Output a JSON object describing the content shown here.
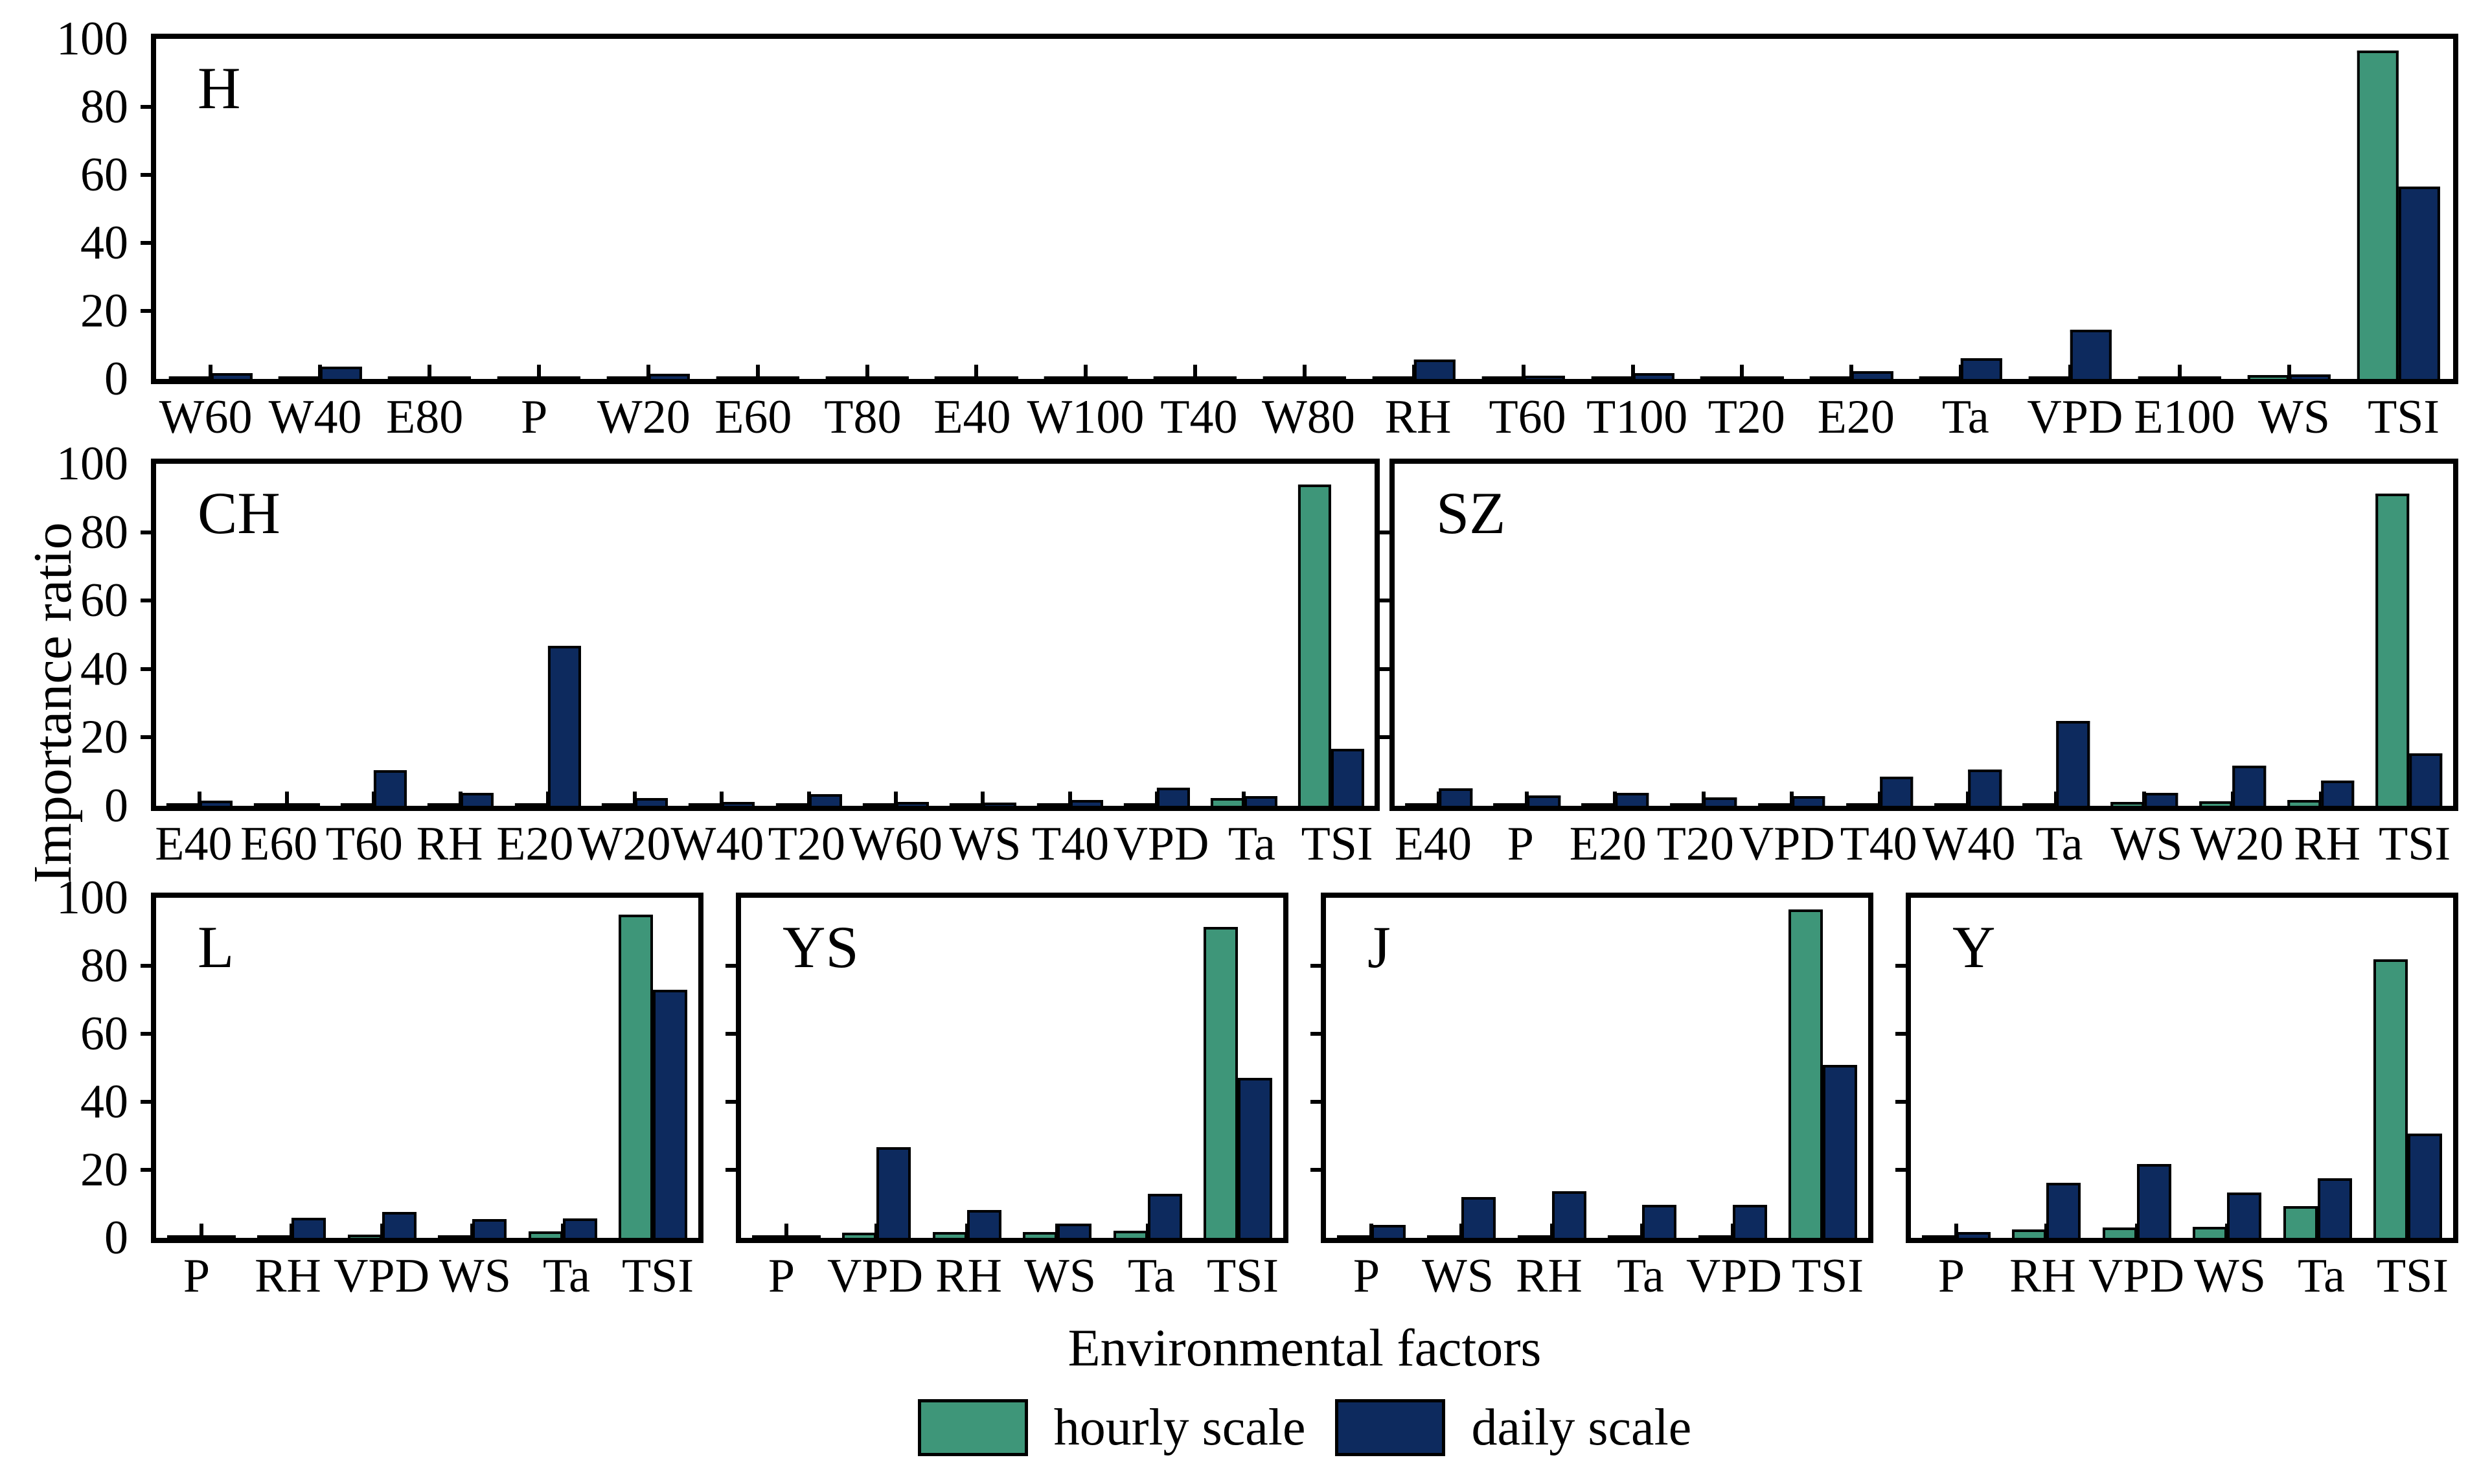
{
  "figure": {
    "y_axis": {
      "label": "Importance ratio",
      "tick_values": [
        100,
        80,
        60,
        40,
        20,
        0
      ],
      "max": 100
    },
    "x_axis": {
      "title": "Environmental factors"
    },
    "legend": {
      "items": [
        {
          "label": "hourly scale",
          "color": "#3E9679"
        },
        {
          "label": "daily scale",
          "color": "#0D2A5E"
        }
      ]
    }
  },
  "chart_data": [
    {
      "type": "bar",
      "panel": "H",
      "title": "H",
      "ylim": [
        0,
        100
      ],
      "y_tick_labels_visible": true,
      "categories": [
        "W60",
        "W40",
        "E80",
        "P",
        "W20",
        "E60",
        "T80",
        "E40",
        "W100",
        "T40",
        "W80",
        "RH",
        "T60",
        "T100",
        "T20",
        "E20",
        "Ta",
        "VPD",
        "E100",
        "WS",
        "TSI"
      ],
      "series": [
        {
          "name": "hourly scale",
          "values": [
            0.2,
            0.2,
            0.1,
            0.1,
            0.2,
            0.1,
            0.1,
            0.1,
            0.1,
            0.1,
            0.1,
            0.3,
            0.2,
            0.2,
            0.2,
            0.3,
            0.4,
            0.4,
            0.2,
            1.2,
            96.5
          ]
        },
        {
          "name": "daily scale",
          "values": [
            1.8,
            3.6,
            0.2,
            0.3,
            1.5,
            0.5,
            0.3,
            0.3,
            0.4,
            0.3,
            0.4,
            5.7,
            1.0,
            1.7,
            0.5,
            2.3,
            6.1,
            14.5,
            0.5,
            1.3,
            56.5
          ]
        }
      ]
    },
    {
      "type": "bar",
      "panel": "CH",
      "title": "CH",
      "ylim": [
        0,
        100
      ],
      "y_tick_labels_visible": true,
      "categories": [
        "E40",
        "E60",
        "T60",
        "RH",
        "E20",
        "W20",
        "W40",
        "T20",
        "W60",
        "WS",
        "T40",
        "VPD",
        "Ta",
        "TSI"
      ],
      "series": [
        {
          "name": "hourly scale",
          "values": [
            0.2,
            0.2,
            0.3,
            0.3,
            0.3,
            0.2,
            0.2,
            0.3,
            0.2,
            0.4,
            0.4,
            0.6,
            2.3,
            94.0
          ]
        },
        {
          "name": "daily scale",
          "values": [
            1.5,
            0.8,
            10.5,
            3.7,
            46.8,
            2.2,
            1.2,
            3.5,
            1.2,
            1.0,
            1.8,
            5.4,
            2.8,
            16.7
          ]
        }
      ]
    },
    {
      "type": "bar",
      "panel": "SZ",
      "title": "SZ",
      "ylim": [
        0,
        100
      ],
      "y_tick_labels_visible": false,
      "categories": [
        "E40",
        "P",
        "E20",
        "T20",
        "VPD",
        "T40",
        "W40",
        "Ta",
        "WS",
        "W20",
        "RH",
        "TSI"
      ],
      "series": [
        {
          "name": "hourly scale",
          "values": [
            0.2,
            0.2,
            0.3,
            0.3,
            0.4,
            0.7,
            0.7,
            0.8,
            1.2,
            1.4,
            1.7,
            91.2
          ]
        },
        {
          "name": "daily scale",
          "values": [
            5.2,
            3.1,
            3.7,
            2.4,
            2.9,
            8.6,
            10.7,
            24.9,
            3.7,
            11.8,
            7.3,
            15.4
          ]
        }
      ]
    },
    {
      "type": "bar",
      "panel": "L",
      "title": "L",
      "ylim": [
        0,
        100
      ],
      "y_tick_labels_visible": true,
      "categories": [
        "P",
        "RH",
        "VPD",
        "WS",
        "Ta",
        "TSI"
      ],
      "series": [
        {
          "name": "hourly scale",
          "values": [
            0.3,
            0.8,
            1.0,
            0.4,
            1.9,
            95.0
          ]
        },
        {
          "name": "daily scale",
          "values": [
            0.6,
            6.0,
            7.6,
            5.5,
            5.8,
            73.0
          ]
        }
      ]
    },
    {
      "type": "bar",
      "panel": "YS",
      "title": "YS",
      "ylim": [
        0,
        100
      ],
      "y_tick_labels_visible": false,
      "categories": [
        "P",
        "VPD",
        "RH",
        "WS",
        "Ta",
        "TSI"
      ],
      "series": [
        {
          "name": "hourly scale",
          "values": [
            0.4,
            1.6,
            1.7,
            1.7,
            2.1,
            91.4
          ]
        },
        {
          "name": "daily scale",
          "values": [
            0.4,
            26.6,
            8.2,
            4.1,
            12.9,
            47.1
          ]
        }
      ]
    },
    {
      "type": "bar",
      "panel": "J",
      "title": "J",
      "ylim": [
        0,
        100
      ],
      "y_tick_labels_visible": false,
      "categories": [
        "P",
        "WS",
        "RH",
        "Ta",
        "VPD",
        "TSI"
      ],
      "series": [
        {
          "name": "hourly scale",
          "values": [
            0.2,
            0.5,
            0.6,
            0.7,
            0.7,
            96.5
          ]
        },
        {
          "name": "daily scale",
          "values": [
            3.9,
            12.0,
            13.8,
            9.8,
            9.8,
            50.8
          ]
        }
      ]
    },
    {
      "type": "bar",
      "panel": "Y",
      "title": "Y",
      "ylim": [
        0,
        100
      ],
      "y_tick_labels_visible": false,
      "categories": [
        "P",
        "RH",
        "VPD",
        "WS",
        "Ta",
        "TSI"
      ],
      "series": [
        {
          "name": "hourly scale",
          "values": [
            0.3,
            2.5,
            3.0,
            3.3,
            9.3,
            82.0
          ]
        },
        {
          "name": "daily scale",
          "values": [
            1.7,
            16.1,
            21.7,
            13.4,
            17.5,
            30.6
          ]
        }
      ]
    }
  ]
}
